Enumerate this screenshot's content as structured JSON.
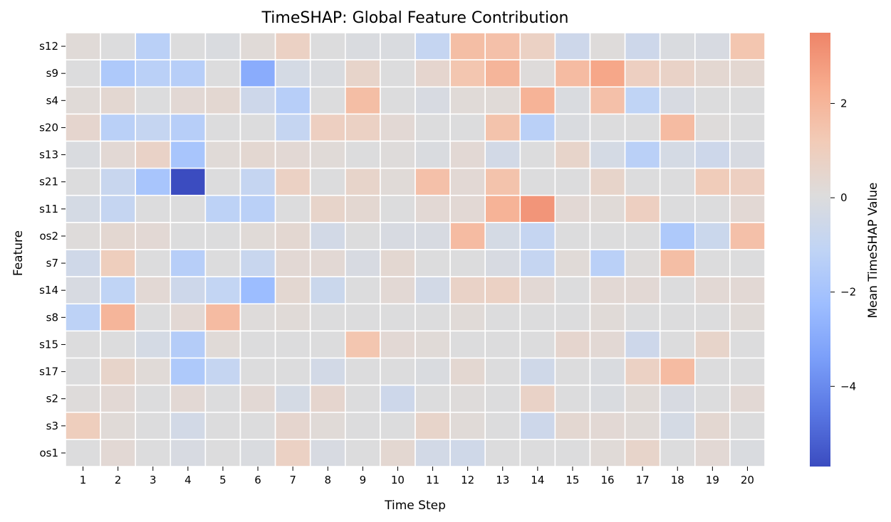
{
  "chart_data": {
    "type": "heatmap",
    "title": "TimeSHAP: Global Feature Contribution",
    "xlabel": "Time Step",
    "ylabel": "Feature",
    "colorbar_label": "Mean TimeSHAP Value",
    "colormap": "coolwarm",
    "color_range": [
      -5.7,
      3.5
    ],
    "colorbar_ticks": [
      {
        "value": 2,
        "label": "2"
      },
      {
        "value": 0,
        "label": "0"
      },
      {
        "value": -2,
        "label": "−2"
      },
      {
        "value": -4,
        "label": "−4"
      }
    ],
    "x_categories": [
      "1",
      "2",
      "3",
      "4",
      "5",
      "6",
      "7",
      "8",
      "9",
      "10",
      "11",
      "12",
      "13",
      "14",
      "15",
      "16",
      "17",
      "18",
      "19",
      "20"
    ],
    "y_categories": [
      "s12",
      "s9",
      "s4",
      "s20",
      "s13",
      "s21",
      "s11",
      "os2",
      "s7",
      "s14",
      "s8",
      "s15",
      "s17",
      "s2",
      "s3",
      "os1"
    ],
    "values": [
      [
        0.2,
        0.0,
        -1.3,
        0.0,
        -0.1,
        0.2,
        0.8,
        0.0,
        -0.1,
        -0.1,
        -0.9,
        1.7,
        1.6,
        0.8,
        -0.6,
        0.1,
        -0.6,
        -0.1,
        -0.2,
        1.4
      ],
      [
        0.0,
        -1.7,
        -1.3,
        -1.4,
        0.0,
        -2.9,
        -0.3,
        -0.1,
        0.6,
        0.0,
        0.5,
        1.4,
        2.0,
        0.1,
        1.8,
        2.5,
        0.9,
        0.7,
        0.4,
        0.4
      ],
      [
        0.2,
        0.4,
        0.0,
        0.3,
        0.4,
        -0.6,
        -1.4,
        0.0,
        1.7,
        0.0,
        -0.2,
        0.2,
        0.2,
        2.1,
        -0.1,
        1.6,
        -1.1,
        -0.2,
        0.0,
        0.0
      ],
      [
        0.5,
        -1.3,
        -0.9,
        -1.4,
        0.0,
        0.0,
        -0.9,
        0.9,
        0.8,
        0.3,
        0.0,
        0.0,
        1.5,
        -1.3,
        -0.1,
        0.0,
        0.0,
        1.8,
        0.1,
        0.0
      ],
      [
        -0.1,
        0.3,
        0.7,
        -1.9,
        0.2,
        0.4,
        0.3,
        0.2,
        0.0,
        0.1,
        -0.1,
        0.3,
        -0.4,
        0.0,
        0.6,
        -0.3,
        -1.3,
        -0.3,
        -0.6,
        -0.2
      ],
      [
        0.0,
        -0.8,
        -1.9,
        -5.7,
        0.0,
        -0.9,
        0.8,
        0.0,
        0.6,
        0.2,
        1.6,
        0.3,
        1.5,
        0.0,
        0.0,
        0.6,
        0.0,
        0.0,
        1.1,
        0.9
      ],
      [
        -0.3,
        -0.9,
        0.0,
        0.0,
        -1.2,
        -1.3,
        0.0,
        0.6,
        0.4,
        0.0,
        0.3,
        0.3,
        2.1,
        3.0,
        0.3,
        0.2,
        0.9,
        0.0,
        0.0,
        0.3
      ],
      [
        0.1,
        0.4,
        0.3,
        0.0,
        0.0,
        0.2,
        0.4,
        -0.4,
        0.0,
        -0.2,
        -0.2,
        1.8,
        -0.3,
        -0.9,
        0.0,
        0.0,
        0.0,
        -1.7,
        -0.7,
        1.6
      ],
      [
        -0.5,
        1.0,
        0.0,
        -1.4,
        0.0,
        -0.8,
        0.3,
        0.3,
        -0.2,
        0.4,
        0.0,
        0.0,
        -0.2,
        -0.9,
        0.2,
        -1.3,
        0.1,
        1.7,
        0.0,
        0.0
      ],
      [
        -0.2,
        -1.1,
        0.3,
        -0.6,
        -1.0,
        -2.3,
        0.4,
        -0.7,
        0.0,
        0.3,
        -0.4,
        0.7,
        0.8,
        0.3,
        0.0,
        0.3,
        0.3,
        0.0,
        0.3,
        0.3
      ],
      [
        -1.2,
        2.0,
        0.0,
        0.3,
        1.8,
        0.1,
        0.2,
        0.0,
        0.0,
        0.0,
        0.0,
        0.2,
        0.0,
        0.0,
        0.0,
        0.2,
        0.0,
        0.0,
        0.0,
        0.2
      ],
      [
        0.0,
        0.0,
        -0.3,
        -1.5,
        0.2,
        0.0,
        0.0,
        0.0,
        1.4,
        0.3,
        0.2,
        0.0,
        0.0,
        0.0,
        0.5,
        0.3,
        -0.6,
        0.0,
        0.6,
        0.0
      ],
      [
        0.0,
        0.6,
        0.2,
        -1.7,
        -0.9,
        0.0,
        0.0,
        -0.4,
        0.0,
        0.0,
        -0.1,
        0.4,
        0.0,
        -0.5,
        0.0,
        -0.1,
        0.8,
        1.8,
        0.0,
        0.0
      ],
      [
        0.1,
        0.3,
        0.0,
        0.3,
        0.0,
        0.3,
        -0.3,
        0.5,
        0.0,
        -0.6,
        0.0,
        0.1,
        0.0,
        0.7,
        0.0,
        -0.1,
        0.2,
        -0.2,
        0.0,
        0.3
      ],
      [
        1.0,
        0.2,
        0.0,
        -0.4,
        0.0,
        0.0,
        0.5,
        0.2,
        0.0,
        0.0,
        0.6,
        0.2,
        0.0,
        -0.6,
        0.4,
        0.3,
        0.2,
        -0.3,
        0.4,
        0.0
      ],
      [
        0.0,
        0.3,
        0.0,
        -0.2,
        0.0,
        -0.1,
        0.8,
        -0.2,
        0.0,
        0.4,
        -0.4,
        -0.5,
        0.0,
        0.0,
        0.0,
        0.2,
        0.6,
        0.0,
        0.3,
        -0.1
      ]
    ]
  }
}
